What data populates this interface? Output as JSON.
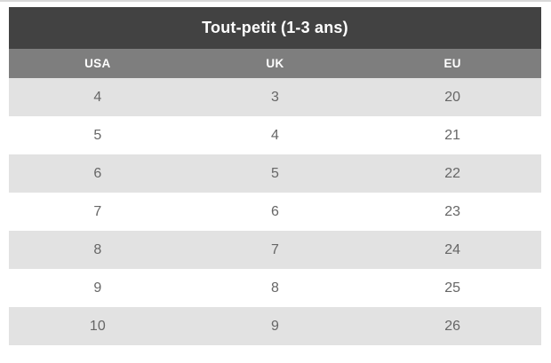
{
  "chart_data": {
    "type": "table",
    "title": "Tout-petit (1-3 ans)",
    "columns": [
      "USA",
      "UK",
      "EU"
    ],
    "rows": [
      [
        "4",
        "3",
        "20"
      ],
      [
        "5",
        "4",
        "21"
      ],
      [
        "6",
        "5",
        "22"
      ],
      [
        "7",
        "6",
        "23"
      ],
      [
        "8",
        "7",
        "24"
      ],
      [
        "9",
        "8",
        "25"
      ],
      [
        "10",
        "9",
        "26"
      ]
    ]
  },
  "colors": {
    "title_bg": "#424242",
    "header_bg": "#7e7e7e",
    "row_alt_bg": "#e2e2e2",
    "row_bg": "#ffffff",
    "header_text": "#ffffff",
    "cell_text": "#666666",
    "top_border": "#d9d9d9"
  }
}
